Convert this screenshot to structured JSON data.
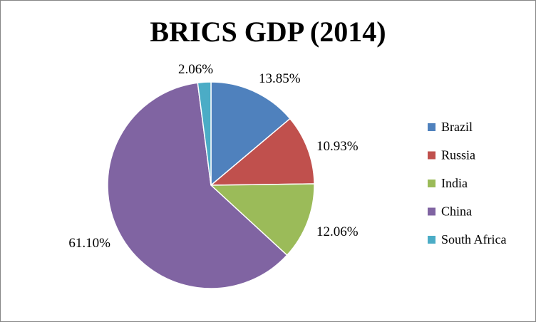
{
  "chart_data": {
    "type": "pie",
    "title": "BRICS GDP (2014)",
    "categories": [
      "Brazil",
      "Russia",
      "India",
      "China",
      "South Africa"
    ],
    "values": [
      13.85,
      10.93,
      12.06,
      61.1,
      2.06
    ],
    "labels": [
      "13.85%",
      "10.93%",
      "12.06%",
      "61.10%",
      "2.06%"
    ],
    "colors": [
      "#4F81BD",
      "#C0504D",
      "#9BBB59",
      "#8064A2",
      "#4BACC6"
    ],
    "legend": "right",
    "start_angle": "12 o'clock",
    "direction": "clockwise"
  }
}
